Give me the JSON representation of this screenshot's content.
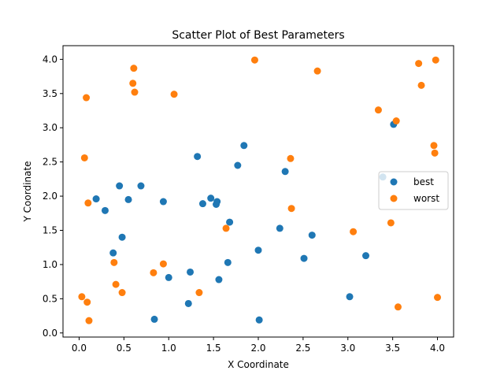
{
  "chart_data": {
    "type": "scatter",
    "title": "Scatter Plot of Best Parameters",
    "xlabel": "X Coordinate",
    "ylabel": "Y Coordinate",
    "xlim": [
      -0.18,
      4.18
    ],
    "ylim": [
      -0.06,
      4.2
    ],
    "xticks": [
      "0.0",
      "0.5",
      "1.0",
      "1.5",
      "2.0",
      "2.5",
      "3.0",
      "3.5",
      "4.0"
    ],
    "yticks": [
      "0.0",
      "0.5",
      "1.0",
      "1.5",
      "2.0",
      "2.5",
      "3.0",
      "3.5",
      "4.0"
    ],
    "grid": false,
    "legend_position": "center-right",
    "series": [
      {
        "name": "best",
        "color": "#1f77b4",
        "points": [
          [
            0.19,
            1.96
          ],
          [
            0.29,
            1.79
          ],
          [
            0.38,
            1.17
          ],
          [
            0.45,
            2.15
          ],
          [
            0.48,
            1.4
          ],
          [
            0.55,
            1.95
          ],
          [
            0.69,
            2.15
          ],
          [
            0.84,
            0.2
          ],
          [
            0.94,
            1.92
          ],
          [
            1.0,
            0.81
          ],
          [
            1.22,
            0.43
          ],
          [
            1.24,
            0.89
          ],
          [
            1.32,
            2.58
          ],
          [
            1.38,
            1.89
          ],
          [
            1.47,
            1.97
          ],
          [
            1.53,
            1.88
          ],
          [
            1.54,
            1.92
          ],
          [
            1.56,
            0.78
          ],
          [
            1.66,
            1.03
          ],
          [
            1.68,
            1.62
          ],
          [
            1.77,
            2.45
          ],
          [
            1.84,
            2.74
          ],
          [
            2.0,
            1.21
          ],
          [
            2.01,
            0.19
          ],
          [
            2.24,
            1.53
          ],
          [
            2.3,
            2.36
          ],
          [
            2.51,
            1.09
          ],
          [
            2.6,
            1.43
          ],
          [
            3.02,
            0.53
          ],
          [
            3.2,
            1.13
          ],
          [
            3.39,
            2.28
          ],
          [
            3.51,
            3.05
          ]
        ]
      },
      {
        "name": "worst",
        "color": "#ff7f0e",
        "points": [
          [
            0.03,
            0.53
          ],
          [
            0.06,
            2.56
          ],
          [
            0.08,
            3.44
          ],
          [
            0.09,
            0.45
          ],
          [
            0.1,
            1.9
          ],
          [
            0.11,
            0.18
          ],
          [
            0.39,
            1.03
          ],
          [
            0.41,
            0.71
          ],
          [
            0.48,
            0.59
          ],
          [
            0.6,
            3.65
          ],
          [
            0.61,
            3.87
          ],
          [
            0.62,
            3.52
          ],
          [
            0.83,
            0.88
          ],
          [
            0.94,
            1.01
          ],
          [
            1.06,
            3.49
          ],
          [
            1.34,
            0.59
          ],
          [
            1.64,
            1.53
          ],
          [
            1.96,
            3.99
          ],
          [
            2.36,
            2.55
          ],
          [
            2.37,
            1.82
          ],
          [
            2.66,
            3.83
          ],
          [
            3.06,
            1.48
          ],
          [
            3.34,
            3.26
          ],
          [
            3.48,
            1.61
          ],
          [
            3.54,
            3.1
          ],
          [
            3.56,
            0.38
          ],
          [
            3.79,
            3.94
          ],
          [
            3.82,
            3.62
          ],
          [
            3.96,
            2.74
          ],
          [
            3.97,
            2.63
          ],
          [
            3.98,
            3.99
          ],
          [
            4.0,
            0.52
          ]
        ]
      }
    ]
  }
}
